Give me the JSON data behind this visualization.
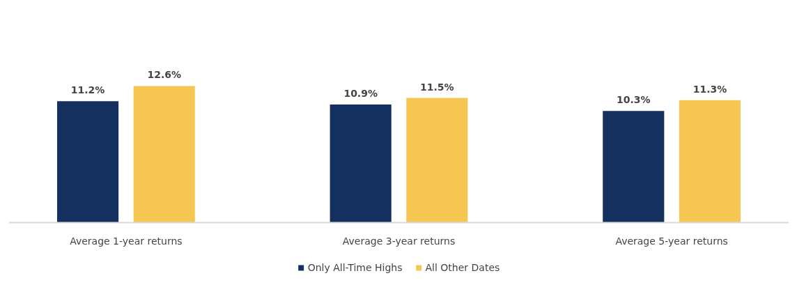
{
  "chart_data": {
    "type": "bar",
    "categories": [
      "Average 1-year returns",
      "Average 3-year returns",
      "Average 5-year returns"
    ],
    "series": [
      {
        "name": "Only All-Time Highs",
        "color": "#13305f",
        "values": [
          11.2,
          10.9,
          10.3
        ],
        "value_labels": [
          "11.2%",
          "10.9%",
          "10.3%"
        ]
      },
      {
        "name": "All Other Dates",
        "color": "#f5c652",
        "values": [
          12.6,
          11.5,
          11.3
        ],
        "value_labels": [
          "12.6%",
          "11.5%",
          "11.3%"
        ]
      }
    ],
    "legend": "bottom"
  }
}
